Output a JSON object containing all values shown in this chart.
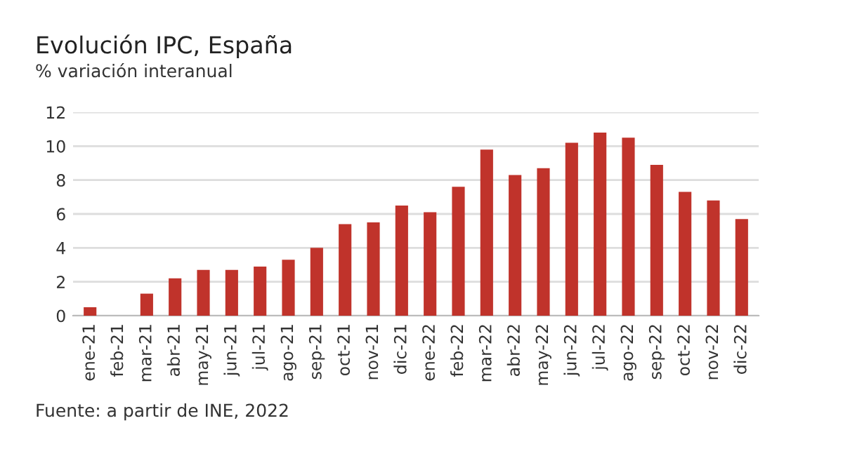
{
  "chart_data": {
    "type": "bar",
    "title": "Evolución IPC, España",
    "subtitle": "% variación interanual",
    "categories": [
      "ene-21",
      "feb-21",
      "mar-21",
      "abr-21",
      "may-21",
      "jun-21",
      "jul-21",
      "ago-21",
      "sep-21",
      "oct-21",
      "nov-21",
      "dic-21",
      "ene-22",
      "feb-22",
      "mar-22",
      "abr-22",
      "may-22",
      "jun-22",
      "jul-22",
      "ago-22",
      "sep-22",
      "oct-22",
      "nov-22",
      "dic-22"
    ],
    "values": [
      0.5,
      0,
      1.3,
      2.2,
      2.7,
      2.7,
      2.9,
      3.3,
      4.0,
      5.4,
      5.5,
      6.5,
      6.1,
      7.6,
      9.8,
      8.3,
      8.7,
      10.2,
      10.8,
      10.5,
      8.9,
      7.3,
      6.8,
      5.7
    ],
    "color": "#c0332b",
    "ylim": [
      0,
      12
    ],
    "yticks": [
      0,
      2,
      4,
      6,
      8,
      10,
      12
    ],
    "grid": "y",
    "annotations": [
      "Fuente: a partir de INE, 2022"
    ]
  }
}
